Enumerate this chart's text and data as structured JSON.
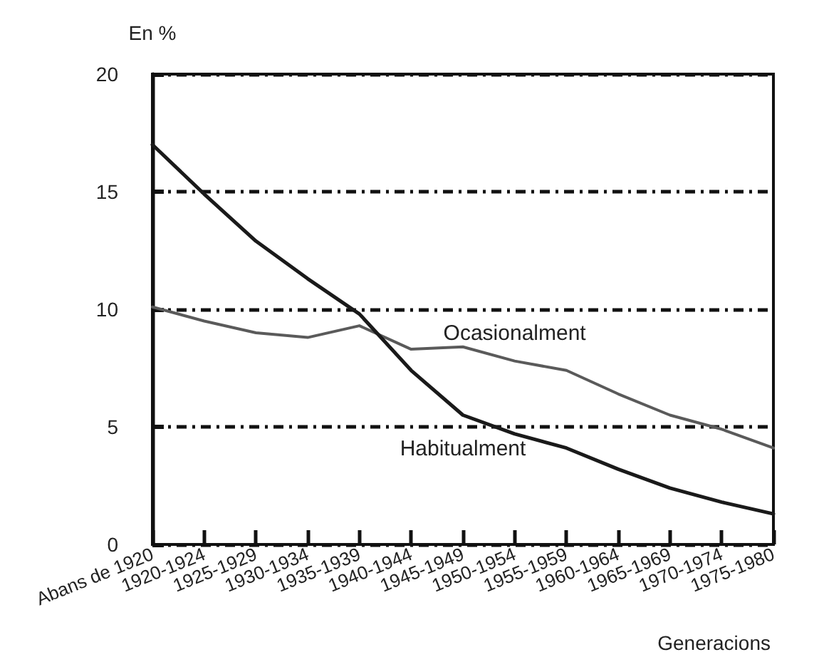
{
  "chart_data": {
    "type": "line",
    "ylabel": "En %",
    "xlabel": "Generacions",
    "categories": [
      "Abans de 1920",
      "1920-1924",
      "1925-1929",
      "1930-1934",
      "1935-1939",
      "1940-1944",
      "1945-1949",
      "1950-1954",
      "1955-1959",
      "1960-1964",
      "1965-1969",
      "1970-1974",
      "1975-1980"
    ],
    "series": [
      {
        "name": "Ocasionalment",
        "color": "#5a5a5a",
        "values": [
          10.1,
          9.5,
          9.0,
          8.8,
          9.3,
          8.3,
          8.4,
          7.8,
          7.4,
          6.4,
          5.5,
          4.9,
          4.1
        ]
      },
      {
        "name": "Habitualment",
        "color": "#1a1a1a",
        "values": [
          17.0,
          14.9,
          12.9,
          11.3,
          9.8,
          7.4,
          5.5,
          4.7,
          4.1,
          3.2,
          2.4,
          1.8,
          1.3
        ]
      }
    ],
    "ylim": [
      0,
      20
    ],
    "yticks": [
      0,
      5,
      10,
      15,
      20
    ],
    "grid": "y",
    "legend": false,
    "marker": "none",
    "line_style": "solid"
  }
}
